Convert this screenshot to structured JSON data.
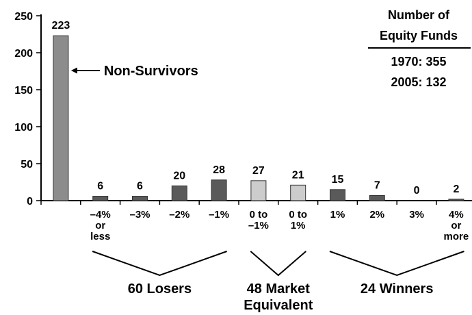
{
  "chart_data": {
    "type": "bar",
    "categories": [
      [
        ""
      ],
      [
        "–4%",
        "or",
        "less"
      ],
      [
        "–3%"
      ],
      [
        "–2%"
      ],
      [
        "–1%"
      ],
      [
        "0 to",
        "–1%"
      ],
      [
        "0 to",
        "1%"
      ],
      [
        "1%"
      ],
      [
        "2%"
      ],
      [
        "3%"
      ],
      [
        "4%",
        "or",
        "more"
      ]
    ],
    "values": [
      223,
      6,
      6,
      20,
      28,
      27,
      21,
      15,
      7,
      0,
      2
    ],
    "bar_colors": [
      "#8c8c8c",
      "#5a5a5a",
      "#5a5a5a",
      "#5a5a5a",
      "#5a5a5a",
      "#cccccc",
      "#cccccc",
      "#5a5a5a",
      "#5a5a5a",
      "#5a5a5a",
      "#5a5a5a"
    ],
    "ylim": [
      0,
      250
    ],
    "yticks": [
      0,
      50,
      100,
      150,
      200,
      250
    ],
    "grid": false,
    "annotation": "Non-Survivors",
    "legend_box": {
      "title_lines": [
        "Number of",
        "Equity Funds"
      ],
      "lines": [
        "1970: 355",
        "2005: 132"
      ]
    },
    "groups": [
      {
        "label_lines": [
          "60 Losers"
        ],
        "from": 1,
        "to": 4
      },
      {
        "label_lines": [
          "48 Market",
          "Equivalent"
        ],
        "from": 5,
        "to": 6
      },
      {
        "label_lines": [
          "24 Winners"
        ],
        "from": 7,
        "to": 10
      }
    ]
  }
}
